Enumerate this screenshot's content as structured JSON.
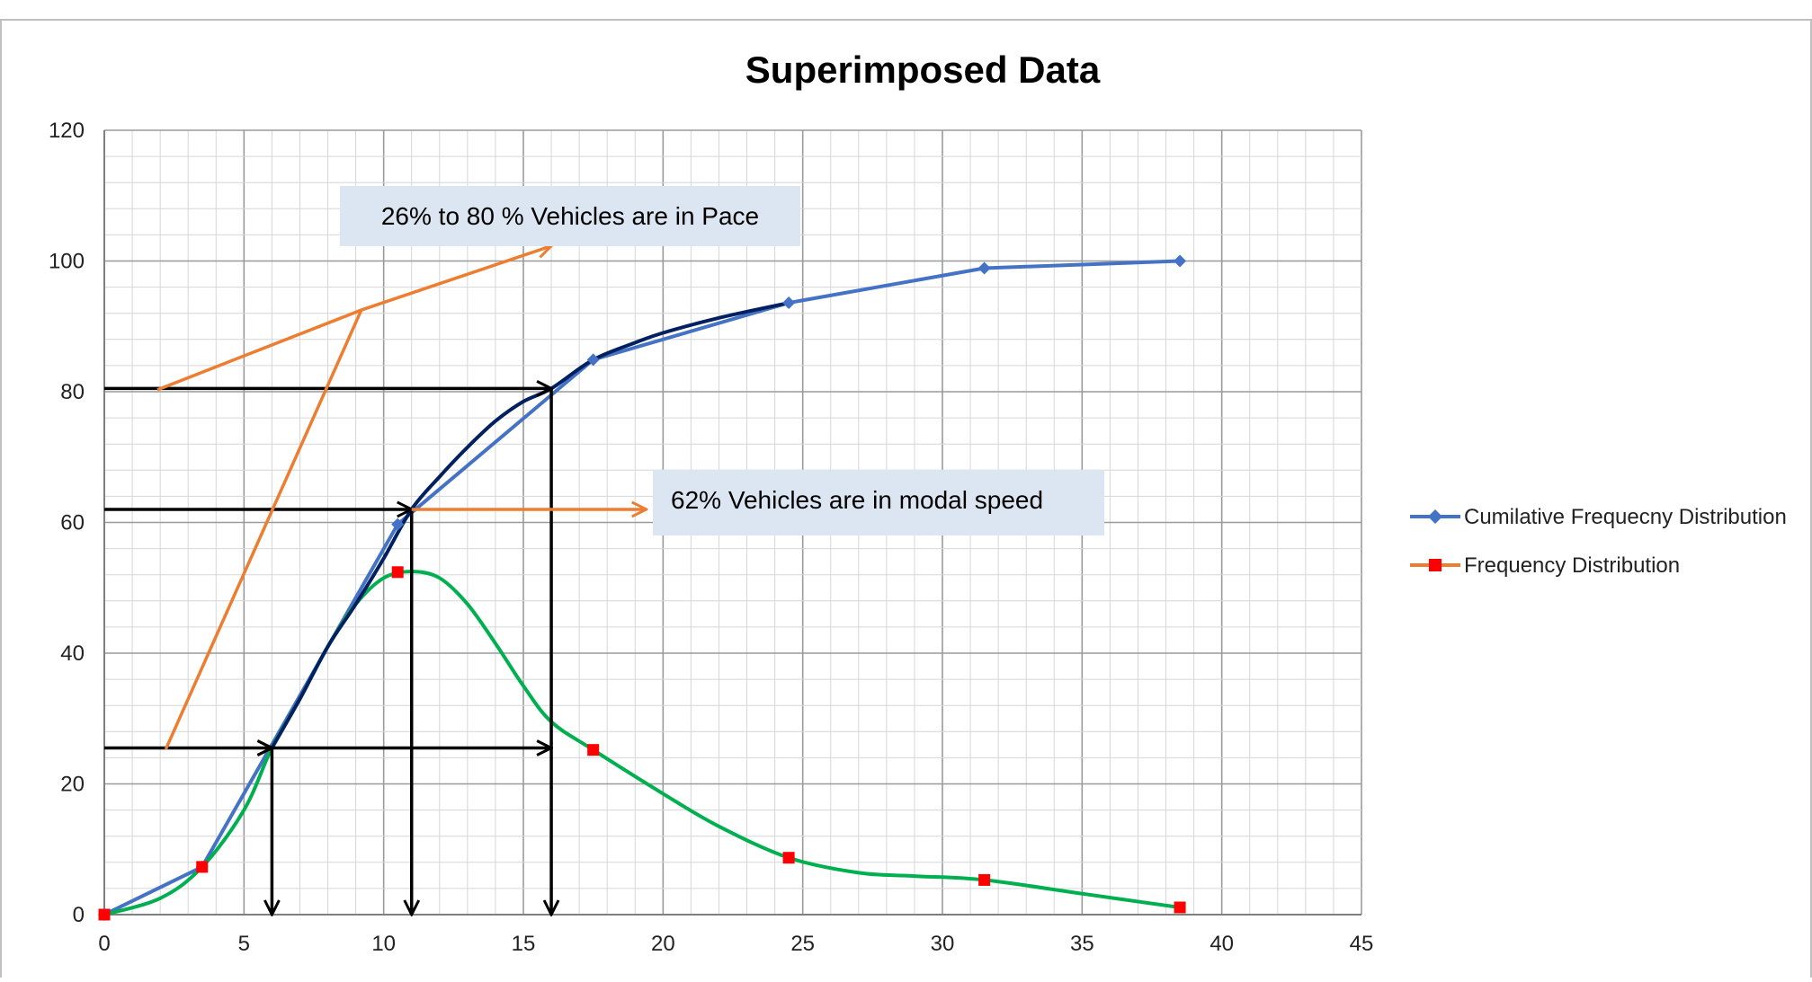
{
  "chart_data": {
    "type": "scatter",
    "title": "Superimposed Data",
    "xlabel": "",
    "ylabel": "",
    "xlim": [
      0,
      45
    ],
    "ylim": [
      0,
      120
    ],
    "x_ticks": [
      0,
      5,
      10,
      15,
      20,
      25,
      30,
      35,
      40,
      45
    ],
    "y_ticks": [
      0,
      20,
      40,
      60,
      80,
      100,
      120
    ],
    "grid": true,
    "legend_position": "right",
    "series": [
      {
        "name": "Cumilative Frequecny Distribution",
        "color": "#4472C4",
        "marker": "diamond",
        "x": [
          0,
          3.5,
          10.5,
          17.5,
          24.5,
          31.5,
          38.5
        ],
        "y": [
          0,
          7.3,
          59.7,
          84.9,
          93.6,
          98.9,
          100
        ]
      },
      {
        "name": "Frequency Distribution",
        "color": "#ED7D31",
        "marker": "square",
        "marker_fill": "#FF0000",
        "x": [
          0,
          3.5,
          10.5,
          17.5,
          24.5,
          31.5,
          38.5
        ],
        "y": [
          0,
          7.3,
          52.4,
          25.2,
          8.7,
          5.3,
          1.1
        ]
      }
    ],
    "overlay_curves": [
      {
        "id": "frequency-smooth-curve",
        "color": "#00B050",
        "points": [
          [
            0,
            0
          ],
          [
            2,
            2.5
          ],
          [
            3.5,
            7.3
          ],
          [
            5,
            16
          ],
          [
            6,
            25.5
          ],
          [
            7,
            33
          ],
          [
            8,
            41
          ],
          [
            9,
            47.5
          ],
          [
            10,
            51.5
          ],
          [
            11,
            52.5
          ],
          [
            12,
            51.5
          ],
          [
            13,
            47.5
          ],
          [
            14,
            41.5
          ],
          [
            15,
            35
          ],
          [
            16,
            29.5
          ],
          [
            17.5,
            25.2
          ],
          [
            20,
            18.5
          ],
          [
            22,
            13.5
          ],
          [
            24.5,
            8.7
          ],
          [
            27,
            6.4
          ],
          [
            29,
            5.9
          ],
          [
            31.5,
            5.3
          ],
          [
            35,
            3.2
          ],
          [
            38.5,
            1.1
          ]
        ]
      },
      {
        "id": "cumulative-smooth-curve",
        "color": "#002060",
        "points": [
          [
            6,
            25.5
          ],
          [
            7,
            33
          ],
          [
            8,
            41
          ],
          [
            9,
            47.5
          ],
          [
            10,
            54.5
          ],
          [
            11,
            62
          ],
          [
            12,
            67
          ],
          [
            13,
            71.5
          ],
          [
            14,
            75.5
          ],
          [
            15,
            78.5
          ],
          [
            16,
            80.5
          ],
          [
            17.5,
            84.9
          ],
          [
            19,
            87.5
          ],
          [
            20,
            89
          ],
          [
            22,
            91.3
          ],
          [
            24.5,
            93.6
          ]
        ]
      }
    ],
    "annotations": [
      {
        "id": "pace-callout",
        "text": "26% to 80 % Vehicles are in Pace",
        "fill": "#DCE6F2"
      },
      {
        "id": "modal-callout",
        "text": "62% Vehicles are in modal speed",
        "fill": "#DCE6F2"
      }
    ],
    "reference_lines": {
      "pace_lower_y": 25.5,
      "pace_upper_y": 80.5,
      "modal_y": 62,
      "pace_lower_x": 6,
      "pace_upper_x": 16,
      "modal_x": 11
    }
  }
}
